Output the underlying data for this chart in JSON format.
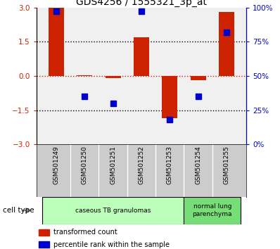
{
  "title": "GDS4256 / 1555321_3p_at",
  "samples": [
    "GSM501249",
    "GSM501250",
    "GSM501251",
    "GSM501252",
    "GSM501253",
    "GSM501254",
    "GSM501255"
  ],
  "transformed_count": [
    3.0,
    0.02,
    -0.1,
    1.7,
    -1.85,
    -0.18,
    2.8
  ],
  "percentile_rank": [
    97,
    35,
    30,
    97,
    18,
    35,
    82
  ],
  "red_color": "#cc2200",
  "blue_color": "#0000cc",
  "left_ylim": [
    -3,
    3
  ],
  "right_ylim": [
    0,
    100
  ],
  "left_yticks": [
    -3,
    -1.5,
    0,
    1.5,
    3
  ],
  "right_yticks": [
    0,
    25,
    50,
    75,
    100
  ],
  "right_yticklabels": [
    "0%",
    "25%",
    "50%",
    "75%",
    "100%"
  ],
  "dotted_lines": [
    1.5,
    0,
    -1.5
  ],
  "cell_type_groups": [
    {
      "label": "caseous TB granulomas",
      "start": 0,
      "end": 5,
      "color": "#bbffbb"
    },
    {
      "label": "normal lung\nparenchyma",
      "start": 5,
      "end": 7,
      "color": "#77dd77"
    }
  ],
  "cell_type_label": "cell type",
  "legend_red": "transformed count",
  "legend_blue": "percentile rank within the sample",
  "bar_width": 0.55,
  "blue_marker_size": 6,
  "bg_plot": "#f0f0f0",
  "bg_samples": "#cccccc"
}
